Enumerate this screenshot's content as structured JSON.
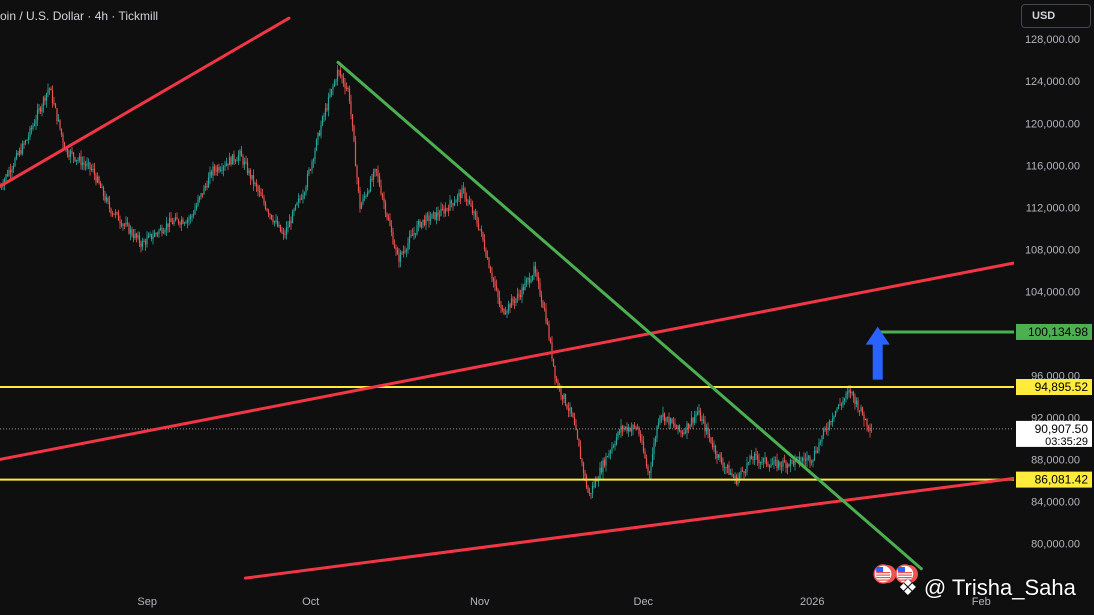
{
  "header": {
    "title": "oin / U.S. Dollar · 4h · Tickmill",
    "currency": "USD"
  },
  "watermark": "@ Trisha_Saha",
  "colors": {
    "background": "#0f0f0f",
    "candle_up": "#26a69a",
    "candle_down": "#ef5350",
    "red_line": "#f23645",
    "green_line": "#4caf50",
    "yellow_line": "#ffeb3b",
    "arrow": "#2962ff"
  },
  "chart_data": {
    "type": "candlestick",
    "y_axis": {
      "min": 77000,
      "max": 130000,
      "tick_labels": [
        "128,000.00",
        "124,000.00",
        "120,000.00",
        "116,000.00",
        "112,000.00",
        "108,000.00",
        "104,000.00",
        "100,000.00",
        "96,000.00",
        "92,000.00",
        "88,000.00",
        "84,000.00",
        "80,000.00"
      ],
      "tick_values": [
        128000,
        124000,
        120000,
        116000,
        112000,
        108000,
        104000,
        100000,
        96000,
        92000,
        88000,
        84000,
        80000
      ]
    },
    "x_axis": {
      "tick_labels": [
        "Sep",
        "Oct",
        "Nov",
        "Dec",
        "2026",
        "Feb"
      ],
      "tick_dates": [
        "2025-09-01",
        "2025-10-01",
        "2025-11-01",
        "2025-12-01",
        "2026-01-01",
        "2026-02-01"
      ],
      "range": [
        "2025-08-05",
        "2026-02-07"
      ]
    },
    "price_path": [
      {
        "date": "2025-08-05",
        "price": 114000
      },
      {
        "date": "2025-08-10",
        "price": 118500
      },
      {
        "date": "2025-08-14",
        "price": 123500
      },
      {
        "date": "2025-08-17",
        "price": 117500
      },
      {
        "date": "2025-08-22",
        "price": 115500
      },
      {
        "date": "2025-08-25",
        "price": 112000
      },
      {
        "date": "2025-08-31",
        "price": 108500
      },
      {
        "date": "2025-09-05",
        "price": 110500
      },
      {
        "date": "2025-09-09",
        "price": 111000
      },
      {
        "date": "2025-09-13",
        "price": 115500
      },
      {
        "date": "2025-09-18",
        "price": 117000
      },
      {
        "date": "2025-09-22",
        "price": 112800
      },
      {
        "date": "2025-09-26",
        "price": 109200
      },
      {
        "date": "2025-09-30",
        "price": 114000
      },
      {
        "date": "2025-10-03",
        "price": 120000
      },
      {
        "date": "2025-10-06",
        "price": 125000
      },
      {
        "date": "2025-10-08",
        "price": 123000
      },
      {
        "date": "2025-10-10",
        "price": 112000
      },
      {
        "date": "2025-10-13",
        "price": 115500
      },
      {
        "date": "2025-10-17",
        "price": 107000
      },
      {
        "date": "2025-10-21",
        "price": 110500
      },
      {
        "date": "2025-10-25",
        "price": 111500
      },
      {
        "date": "2025-10-29",
        "price": 113500
      },
      {
        "date": "2025-11-01",
        "price": 110000
      },
      {
        "date": "2025-11-05",
        "price": 102000
      },
      {
        "date": "2025-11-08",
        "price": 103500
      },
      {
        "date": "2025-11-11",
        "price": 106000
      },
      {
        "date": "2025-11-13",
        "price": 102000
      },
      {
        "date": "2025-11-15",
        "price": 95500
      },
      {
        "date": "2025-11-18",
        "price": 92000
      },
      {
        "date": "2025-11-21",
        "price": 84500
      },
      {
        "date": "2025-11-24",
        "price": 88000
      },
      {
        "date": "2025-11-27",
        "price": 91000
      },
      {
        "date": "2025-11-30",
        "price": 91000
      },
      {
        "date": "2025-12-02",
        "price": 86500
      },
      {
        "date": "2025-12-04",
        "price": 92500
      },
      {
        "date": "2025-12-08",
        "price": 90500
      },
      {
        "date": "2025-12-11",
        "price": 92500
      },
      {
        "date": "2025-12-15",
        "price": 88000
      },
      {
        "date": "2025-12-18",
        "price": 86000
      },
      {
        "date": "2025-12-21",
        "price": 88200
      },
      {
        "date": "2025-12-25",
        "price": 87500
      },
      {
        "date": "2025-12-28",
        "price": 87700
      },
      {
        "date": "2026-01-01",
        "price": 88200
      },
      {
        "date": "2026-01-05",
        "price": 92500
      },
      {
        "date": "2026-01-08",
        "price": 94500
      },
      {
        "date": "2026-01-11",
        "price": 91500
      },
      {
        "date": "2026-01-12",
        "price": 90907.5
      }
    ],
    "drawings": [
      {
        "name": "red-channel-upper-left",
        "type": "trend_line",
        "color": "red",
        "points": [
          {
            "date": "2025-08-05",
            "price": 114000
          },
          {
            "date": "2025-09-27",
            "price": 130000
          }
        ]
      },
      {
        "name": "red-channel-middle",
        "type": "trend_line",
        "color": "red",
        "points": [
          {
            "date": "2025-08-05",
            "price": 88000
          },
          {
            "date": "2026-02-07",
            "price": 106700
          }
        ]
      },
      {
        "name": "red-channel-lower",
        "type": "trend_line",
        "color": "red",
        "points": [
          {
            "date": "2025-09-19",
            "price": 76700
          },
          {
            "date": "2026-02-07",
            "price": 86200
          }
        ]
      },
      {
        "name": "green-descending-trendline",
        "type": "trend_line",
        "color": "green",
        "points": [
          {
            "date": "2025-10-06",
            "price": 125800
          },
          {
            "date": "2026-01-21",
            "price": 77600
          }
        ]
      },
      {
        "name": "green-target-line",
        "type": "horizontal_ray",
        "color": "green",
        "price": 100134.98,
        "from_date": "2026-01-13"
      }
    ],
    "horizontal_levels": [
      {
        "name": "resistance",
        "price": 94895.52,
        "label": "94,895.52",
        "color": "yellow"
      },
      {
        "name": "support",
        "price": 86081.42,
        "label": "86,081.42",
        "color": "yellow"
      },
      {
        "name": "target",
        "price": 100134.98,
        "label": "100,134.98",
        "color": "green"
      }
    ],
    "current_price": {
      "price": 90907.5,
      "label": "90,907.50",
      "countdown": "03:35:29"
    },
    "annotations": [
      {
        "type": "arrow_up",
        "color": "blue",
        "date": "2026-01-13",
        "from_price": 95600,
        "to_price": 99500
      }
    ],
    "event_markers": [
      {
        "type": "us-flag-icon",
        "date": "2026-01-14"
      },
      {
        "type": "us-flag-icon",
        "date": "2026-01-18"
      }
    ]
  }
}
